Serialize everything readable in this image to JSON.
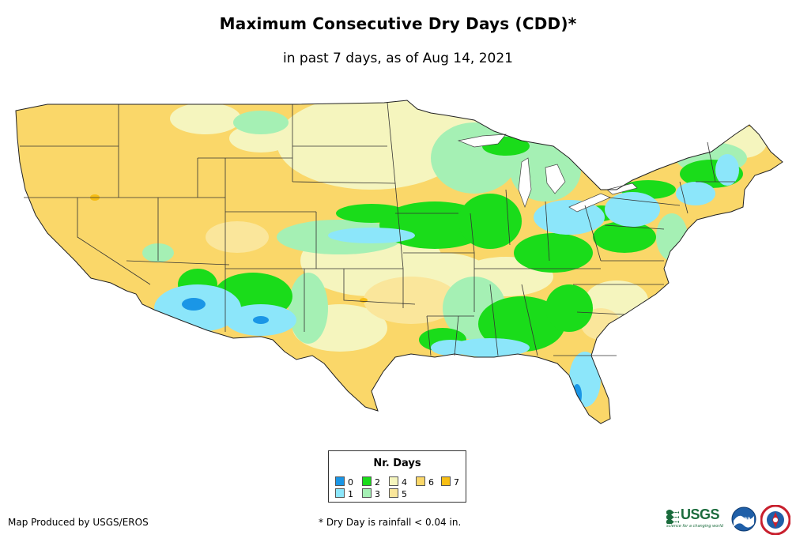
{
  "map": {
    "title": "Maximum Consecutive Dry Days (CDD)*",
    "subtitle": "in past 7 days, as of Aug 14, 2021",
    "region": "Contiguous United States",
    "legend": {
      "title": "Nr. Days",
      "items": [
        {
          "label": "0",
          "color": "#1a96e6"
        },
        {
          "label": "1",
          "color": "#8ce6fa"
        },
        {
          "label": "2",
          "color": "#1adc1a"
        },
        {
          "label": "3",
          "color": "#a5f0b4"
        },
        {
          "label": "4",
          "color": "#f5f5be"
        },
        {
          "label": "5",
          "color": "#fae69b"
        },
        {
          "label": "6",
          "color": "#fad769"
        },
        {
          "label": "7",
          "color": "#f7be14"
        }
      ]
    },
    "footer": {
      "credit": "Map Produced by USGS/EROS",
      "note": "* Dry Day is rainfall < 0.04 in."
    },
    "logos": {
      "usgs": "USGS",
      "usgs_tagline": "science for a changing world",
      "noaa": "noaa"
    }
  }
}
